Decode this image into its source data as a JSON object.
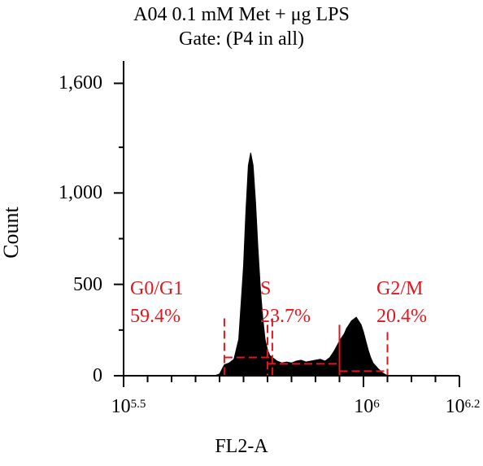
{
  "chart_data": {
    "type": "area",
    "title": "A04 0.1 mM Met + μg LPS",
    "subtitle": "Gate: (P4 in all)",
    "xlabel": "FL2-A",
    "ylabel": "Count",
    "xscale": "log",
    "xlim_log10": [
      5.5,
      6.2
    ],
    "ylim": [
      0,
      1700
    ],
    "yticks": [
      {
        "value": 0,
        "label": "0"
      },
      {
        "value": 500,
        "label": "500"
      },
      {
        "value": 1000,
        "label": "1,000"
      },
      {
        "value": 1600,
        "label": "1,600"
      }
    ],
    "xticks": [
      {
        "log10": 5.5,
        "base": "10",
        "exp": "5.5"
      },
      {
        "log10": 6.0,
        "base": "10",
        "exp": "6"
      },
      {
        "log10": 6.2,
        "base": "10",
        "exp": "6.2"
      }
    ],
    "series_color": "#000000",
    "histogram": {
      "log10_x": [
        5.69,
        5.7,
        5.71,
        5.72,
        5.73,
        5.74,
        5.75,
        5.755,
        5.76,
        5.765,
        5.77,
        5.775,
        5.78,
        5.785,
        5.79,
        5.795,
        5.8,
        5.805,
        5.81,
        5.815,
        5.82,
        5.83,
        5.84,
        5.85,
        5.86,
        5.87,
        5.88,
        5.89,
        5.9,
        5.91,
        5.92,
        5.93,
        5.94,
        5.95,
        5.96,
        5.965,
        5.97,
        5.975,
        5.98,
        5.985,
        5.99,
        5.995,
        6.0,
        6.005,
        6.01,
        6.015,
        6.02,
        6.03,
        6.04,
        6.05
      ],
      "counts": [
        0,
        10,
        60,
        70,
        90,
        200,
        600,
        900,
        1150,
        1220,
        1150,
        950,
        700,
        480,
        320,
        200,
        140,
        110,
        100,
        90,
        80,
        70,
        75,
        70,
        80,
        85,
        75,
        80,
        85,
        90,
        80,
        100,
        140,
        190,
        230,
        260,
        280,
        300,
        310,
        320,
        300,
        280,
        240,
        190,
        140,
        100,
        70,
        40,
        15,
        0
      ]
    },
    "gates": [
      {
        "name": "G0/G1",
        "percent": "59.4%",
        "log10_range": [
          5.71,
          5.81
        ],
        "level": 100
      },
      {
        "name": "S",
        "percent": "23.7%",
        "log10_range": [
          5.8,
          5.95
        ],
        "level": 65
      },
      {
        "name": "G2/M",
        "percent": "20.4%",
        "log10_range": [
          5.95,
          6.05
        ],
        "level": 25
      }
    ],
    "gate_color": "#e3161e",
    "grid": false,
    "legend": "none"
  }
}
